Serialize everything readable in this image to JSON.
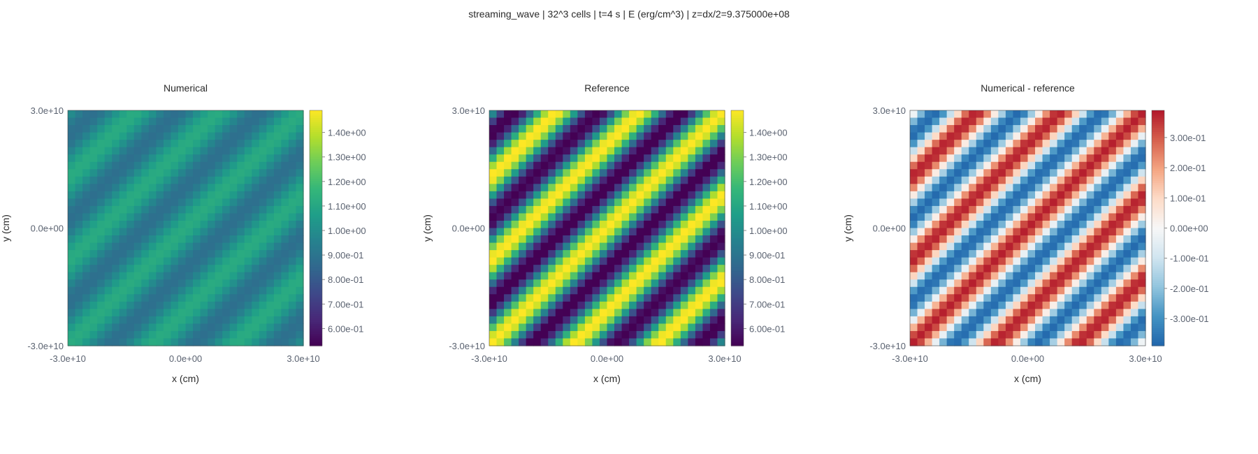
{
  "suptitle": "streaming_wave | 32^3 cells | t=4 s | E (erg/cm^3) | z=dx/2=9.375000e+08",
  "chart_data": [
    {
      "type": "heatmap",
      "title": "Numerical",
      "xlabel": "x (cm)",
      "ylabel": "y (cm)",
      "xlim": [
        -30000000000.0,
        30000000000.0
      ],
      "ylim": [
        -30000000000.0,
        30000000000.0
      ],
      "x_ticks": [
        "-3.0e+10",
        "0.0e+00",
        "3.0e+10"
      ],
      "y_ticks": [
        "3.0e+10",
        "0.0e+00",
        "-3.0e+10"
      ],
      "grid": [
        32,
        32
      ],
      "field": {
        "mean": 1.0,
        "amplitude": 0.12,
        "wavelength_cm": 15000000000.0,
        "kx_sign": 1,
        "ky_sign": -1
      },
      "colormap": "viridis",
      "colorbar": {
        "vmin": 0.53,
        "vmax": 1.49,
        "ticks": [
          0.6,
          0.7,
          0.8,
          0.9,
          1.0,
          1.1,
          1.2,
          1.3,
          1.4
        ],
        "tick_labels": [
          "6.00e-01",
          "7.00e-01",
          "8.00e-01",
          "9.00e-01",
          "1.00e+00",
          "1.10e+00",
          "1.20e+00",
          "1.30e+00",
          "1.40e+00"
        ]
      }
    },
    {
      "type": "heatmap",
      "title": "Reference",
      "xlabel": "x (cm)",
      "ylabel": "y (cm)",
      "xlim": [
        -30000000000.0,
        30000000000.0
      ],
      "ylim": [
        -30000000000.0,
        30000000000.0
      ],
      "x_ticks": [
        "-3.0e+10",
        "0.0e+00",
        "3.0e+10"
      ],
      "y_ticks": [
        "3.0e+10",
        "0.0e+00",
        "-3.0e+10"
      ],
      "grid": [
        32,
        32
      ],
      "field": {
        "mean": 1.0,
        "amplitude": 0.5,
        "wavelength_cm": 15000000000.0,
        "kx_sign": 1,
        "ky_sign": -1
      },
      "colormap": "viridis",
      "colorbar": {
        "vmin": 0.53,
        "vmax": 1.49,
        "ticks": [
          0.6,
          0.7,
          0.8,
          0.9,
          1.0,
          1.1,
          1.2,
          1.3,
          1.4
        ],
        "tick_labels": [
          "6.00e-01",
          "7.00e-01",
          "8.00e-01",
          "9.00e-01",
          "1.00e+00",
          "1.10e+00",
          "1.20e+00",
          "1.30e+00",
          "1.40e+00"
        ]
      }
    },
    {
      "type": "heatmap",
      "title": "Numerical - reference",
      "xlabel": "x (cm)",
      "ylabel": "y (cm)",
      "xlim": [
        -30000000000.0,
        30000000000.0
      ],
      "ylim": [
        -30000000000.0,
        30000000000.0
      ],
      "x_ticks": [
        "-3.0e+10",
        "0.0e+00",
        "3.0e+10"
      ],
      "y_ticks": [
        "3.0e+10",
        "0.0e+00",
        "-3.0e+10"
      ],
      "grid": [
        32,
        32
      ],
      "field": {
        "mean": 0.0,
        "amplitude": 0.38,
        "wavelength_cm": 15000000000.0,
        "kx_sign": -1,
        "ky_sign": 1
      },
      "colormap": "rdbu_r",
      "colorbar": {
        "vmin": -0.39,
        "vmax": 0.39,
        "ticks": [
          -0.3,
          -0.2,
          -0.1,
          0.0,
          0.1,
          0.2,
          0.3
        ],
        "tick_labels": [
          "-3.00e-01",
          "-2.00e-01",
          "-1.00e-01",
          "0.00e+00",
          "1.00e-01",
          "2.00e-01",
          "3.00e-01"
        ]
      }
    }
  ]
}
